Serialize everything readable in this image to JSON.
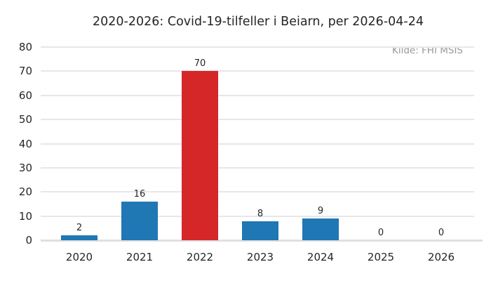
{
  "title": "2020-2026: Covid-19-tilfeller i Beiarn, per 2026-04-24",
  "source_note": "Kilde: FHI MSIS",
  "colors": {
    "background": "#ffffff",
    "bar_default": "#1f77b4",
    "bar_highlight": "#d62728",
    "gridline": "#e7e7e7",
    "axis_line": "#e0e0e0",
    "text": "#262626",
    "muted_text": "#999999"
  },
  "chart_data": {
    "type": "bar",
    "title": "2020-2026: Covid-19-tilfeller i Beiarn, per 2026-04-24",
    "categories": [
      "2020",
      "2021",
      "2022",
      "2023",
      "2024",
      "2025",
      "2026"
    ],
    "values": [
      2,
      16,
      70,
      8,
      9,
      0,
      0
    ],
    "highlight_category": "2022",
    "xlabel": "",
    "ylabel": "",
    "ylim": [
      0,
      80
    ],
    "ytick_step": 10,
    "yticks": [
      0,
      10,
      20,
      30,
      40,
      50,
      60,
      70,
      80
    ],
    "grid": "horizontal",
    "legend_position": "none",
    "bar_labels_shown": true,
    "annotations": [
      "Kilde: FHI MSIS"
    ]
  }
}
